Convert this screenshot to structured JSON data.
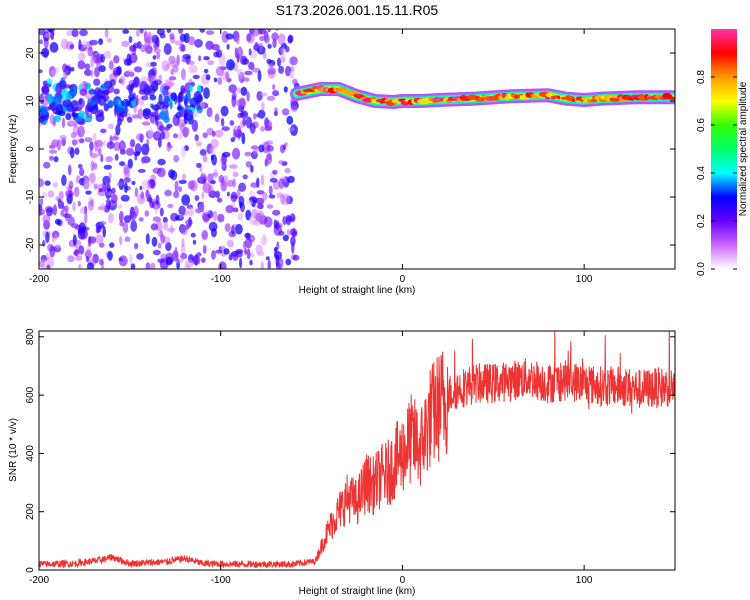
{
  "figure_title": "S173.2026.001.15.11.R05",
  "chart_data": [
    {
      "type": "heatmap",
      "title": "",
      "xlabel": "Height of straight line (km)",
      "ylabel": "Frequency (Hz)",
      "xlim": [
        -200,
        150
      ],
      "ylim": [
        -25,
        25
      ],
      "x_ticks": [
        -200,
        -100,
        0,
        100
      ],
      "y_ticks": [
        -20,
        -10,
        0,
        10,
        20
      ],
      "x_tick_labels": [
        "-200",
        "-100",
        "0",
        "100"
      ],
      "y_tick_labels": [
        "-20",
        "-10",
        "0",
        "10",
        "20"
      ],
      "colorbar": {
        "label": "Normalized spectral amplitude",
        "range": [
          0,
          1
        ],
        "ticks": [
          0.0,
          0.2,
          0.4,
          0.6,
          0.8
        ],
        "tick_labels": [
          "0.0",
          "0.2",
          "0.4",
          "0.6",
          "0.8"
        ],
        "colormap": "rainbow",
        "stops": [
          "#ffffff",
          "#cc66ff",
          "#6600ff",
          "#0000ff",
          "#00ffff",
          "#00ff66",
          "#33ff00",
          "#ffff00",
          "#ff9900",
          "#ff0000",
          "#ff33aa"
        ]
      },
      "regions": [
        {
          "description": "scattered noise",
          "x_range": [
            -200,
            -58
          ],
          "y_range": [
            -25,
            25
          ],
          "amplitude": [
            0.05,
            0.3
          ]
        },
        {
          "description": "enhanced band",
          "x_range": [
            -200,
            -110
          ],
          "y_range": [
            6,
            14
          ],
          "amplitude": [
            0.2,
            0.4
          ]
        },
        {
          "description": "signal ridge",
          "x_range": [
            -58,
            150
          ],
          "frequency_hz": 10.5,
          "amplitude": [
            0.7,
            1.0
          ]
        }
      ],
      "ridge_path": [
        [
          -58,
          11.5
        ],
        [
          -45,
          12.5
        ],
        [
          -35,
          12.5
        ],
        [
          -25,
          11
        ],
        [
          -15,
          10
        ],
        [
          -5,
          9.8
        ],
        [
          0,
          10
        ],
        [
          10,
          10
        ],
        [
          20,
          10.2
        ],
        [
          40,
          10.5
        ],
        [
          60,
          11
        ],
        [
          80,
          11.2
        ],
        [
          90,
          10.5
        ],
        [
          100,
          10.2
        ],
        [
          110,
          10.5
        ],
        [
          130,
          10.8
        ],
        [
          150,
          10.8
        ]
      ]
    },
    {
      "type": "line",
      "title": "",
      "xlabel": "Height of straight line (km)",
      "ylabel": "SNR (10 * v/v)",
      "xlim": [
        -200,
        150
      ],
      "ylim": [
        0,
        820
      ],
      "x_ticks": [
        -200,
        -100,
        0,
        100
      ],
      "y_ticks": [
        0,
        200,
        400,
        600,
        800
      ],
      "x_tick_labels": [
        "-200",
        "-100",
        "0",
        "100"
      ],
      "y_tick_labels": [
        "0",
        "200",
        "400",
        "600",
        "800"
      ],
      "color": "#ee3333",
      "series": [
        {
          "x": [
            -200,
            -180,
            -165,
            -160,
            -150,
            -130,
            -120,
            -110,
            -90,
            -70,
            -60,
            -48,
            -42,
            -38,
            -30,
            -25,
            -20,
            -16,
            -12,
            -8,
            -4,
            0,
            5,
            10,
            15,
            20,
            25,
            30,
            40,
            50,
            60,
            70,
            80,
            90,
            100,
            110,
            120,
            130,
            140,
            150
          ],
          "values": [
            20,
            22,
            35,
            45,
            22,
            28,
            40,
            22,
            20,
            20,
            20,
            30,
            120,
            170,
            250,
            230,
            300,
            290,
            320,
            330,
            370,
            400,
            450,
            420,
            520,
            560,
            600,
            620,
            640,
            640,
            650,
            660,
            640,
            650,
            640,
            630,
            630,
            620,
            625,
            630
          ]
        }
      ]
    }
  ]
}
